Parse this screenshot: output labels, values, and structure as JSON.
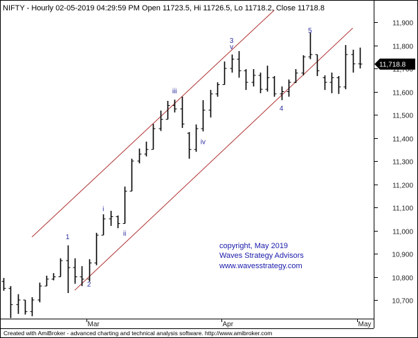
{
  "header": {
    "text": "NIFTY - Hourly 02-05-2019 04:29:59 PM Open 11723.5, Hi 11726.5, Lo 11718.2, Close 11718.8"
  },
  "footer": {
    "text": "Created with AmiBroker - advanced charting and technical analysis software. http://www.amibroker.com"
  },
  "watermark": {
    "line1": "copyright, May 2019",
    "line2": "Waves Strategy Advisors",
    "line3": "www.wavesstrategy.com",
    "color": "#1a1aaa"
  },
  "colors": {
    "bars": "#000000",
    "channel": "#b03030",
    "wave_labels": "#2a2aa0",
    "price_tag_bg": "#000000"
  },
  "chart_data": {
    "type": "ohlc-bar",
    "symbol": "NIFTY",
    "interval": "Hourly",
    "ylim": [
      10600,
      11990
    ],
    "yticks": [
      10700,
      10800,
      10900,
      11000,
      11100,
      11200,
      11300,
      11400,
      11500,
      11600,
      11700,
      11800,
      11900
    ],
    "ytick_labels": [
      "10,700",
      "10,800",
      "10,900",
      "11,000",
      "11,100",
      "11,200",
      "11,300",
      "11,400",
      "11,500",
      "11,600",
      "11,700",
      "11,800",
      "11,900"
    ],
    "xtick_labels": [
      {
        "date": "2019-03-01",
        "label": "Mar"
      },
      {
        "date": "2019-04-01",
        "label": "Apr"
      },
      {
        "date": "2019-05-02",
        "label": "May"
      }
    ],
    "last_price_label": "11,718.8",
    "last_price": 11718.8,
    "bars": [
      [
        "2019-02-13",
        10780,
        10795,
        10740,
        10750
      ],
      [
        "2019-02-14",
        10750,
        10760,
        10622,
        10680
      ],
      [
        "2019-02-15",
        10680,
        10725,
        10640,
        10700
      ],
      [
        "2019-02-18",
        10700,
        10700,
        10637,
        10650
      ],
      [
        "2019-02-19",
        10650,
        10712,
        10630,
        10700
      ],
      [
        "2019-02-20",
        10700,
        10775,
        10690,
        10760
      ],
      [
        "2019-02-21",
        10760,
        10805,
        10760,
        10790
      ],
      [
        "2019-02-22",
        10790,
        10816,
        10785,
        10800
      ],
      [
        "2019-02-25",
        10800,
        10880,
        10800,
        10870
      ],
      [
        "2019-02-26",
        10870,
        10936,
        10730,
        10840
      ],
      [
        "2019-02-27",
        10840,
        10880,
        10770,
        10800
      ],
      [
        "2019-02-28",
        10800,
        10846,
        10760,
        10790
      ],
      [
        "2019-03-01",
        10790,
        10876,
        10780,
        10860
      ],
      [
        "2019-03-05",
        10860,
        10990,
        10850,
        10980
      ],
      [
        "2019-03-06",
        10980,
        11070,
        10980,
        11050
      ],
      [
        "2019-03-07",
        11050,
        11085,
        11020,
        11060
      ],
      [
        "2019-03-08",
        11060,
        11065,
        11010,
        11030
      ],
      [
        "2019-03-11",
        11030,
        11190,
        11030,
        11170
      ],
      [
        "2019-03-12",
        11170,
        11310,
        11170,
        11300
      ],
      [
        "2019-03-13",
        11300,
        11354,
        11290,
        11330
      ],
      [
        "2019-03-14",
        11330,
        11384,
        11320,
        11350
      ],
      [
        "2019-03-15",
        11350,
        11460,
        11350,
        11440
      ],
      [
        "2019-03-18",
        11440,
        11518,
        11430,
        11480
      ],
      [
        "2019-03-19",
        11480,
        11560,
        11480,
        11540
      ],
      [
        "2019-03-20",
        11540,
        11565,
        11510,
        11525
      ],
      [
        "2019-03-22",
        11525,
        11578,
        11443,
        11460
      ],
      [
        "2019-03-25",
        11420,
        11425,
        11310,
        11350
      ],
      [
        "2019-03-26",
        11350,
        11458,
        11340,
        11440
      ],
      [
        "2019-03-27",
        11440,
        11563,
        11428,
        11520
      ],
      [
        "2019-03-28",
        11520,
        11607,
        11488,
        11590
      ],
      [
        "2019-03-29",
        11590,
        11640,
        11578,
        11630
      ],
      [
        "2019-04-01",
        11630,
        11730,
        11630,
        11700
      ],
      [
        "2019-04-02",
        11700,
        11760,
        11682,
        11740
      ],
      [
        "2019-04-03",
        11740,
        11775,
        11660,
        11690
      ],
      [
        "2019-04-04",
        11690,
        11697,
        11607,
        11640
      ],
      [
        "2019-04-05",
        11640,
        11697,
        11622,
        11670
      ],
      [
        "2019-04-08",
        11670,
        11682,
        11593,
        11610
      ],
      [
        "2019-04-09",
        11610,
        11712,
        11600,
        11660
      ],
      [
        "2019-04-10",
        11660,
        11667,
        11578,
        11590
      ],
      [
        "2019-04-11",
        11590,
        11622,
        11563,
        11600
      ],
      [
        "2019-04-12",
        11600,
        11652,
        11578,
        11640
      ],
      [
        "2019-04-15",
        11640,
        11697,
        11637,
        11680
      ],
      [
        "2019-04-16",
        11680,
        11757,
        11670,
        11750
      ],
      [
        "2019-04-18",
        11750,
        11856,
        11740,
        11760
      ],
      [
        "2019-04-22",
        11760,
        11760,
        11667,
        11690
      ],
      [
        "2019-04-23",
        11660,
        11670,
        11607,
        11640
      ],
      [
        "2019-04-24",
        11640,
        11682,
        11593,
        11660
      ],
      [
        "2019-04-25",
        11660,
        11667,
        11590,
        11620
      ],
      [
        "2019-04-26",
        11620,
        11801,
        11610,
        11760
      ],
      [
        "2019-04-30",
        11760,
        11781,
        11682,
        11720
      ],
      [
        "2019-05-02",
        11720,
        11790,
        11700,
        11718.8
      ]
    ],
    "channel_lines": [
      {
        "from": [
          "2019-02-19",
          10972
        ],
        "to": [
          "2019-04-10",
          11952
        ]
      },
      {
        "from": [
          "2019-02-27",
          10742
        ],
        "to": [
          "2019-04-30",
          11874
        ]
      }
    ],
    "annotations": [
      {
        "text": "1",
        "date": "2019-02-26",
        "price": 10975
      },
      {
        "text": "2",
        "date": "2019-03-01",
        "price": 10770
      },
      {
        "text": "i",
        "date": "2019-03-06",
        "price": 11095
      },
      {
        "text": "ii",
        "date": "2019-03-11",
        "price": 10990
      },
      {
        "text": "iii",
        "date": "2019-03-20",
        "price": 11605
      },
      {
        "text": "iv",
        "date": "2019-03-27",
        "price": 11385
      },
      {
        "text": "3",
        "date": "2019-04-02",
        "price": 11822
      },
      {
        "text": "v",
        "date": "2019-04-02",
        "price": 11795
      },
      {
        "text": "4",
        "date": "2019-04-11",
        "price": 11530
      },
      {
        "text": "5",
        "date": "2019-04-18",
        "price": 11865
      }
    ],
    "grid": false
  }
}
